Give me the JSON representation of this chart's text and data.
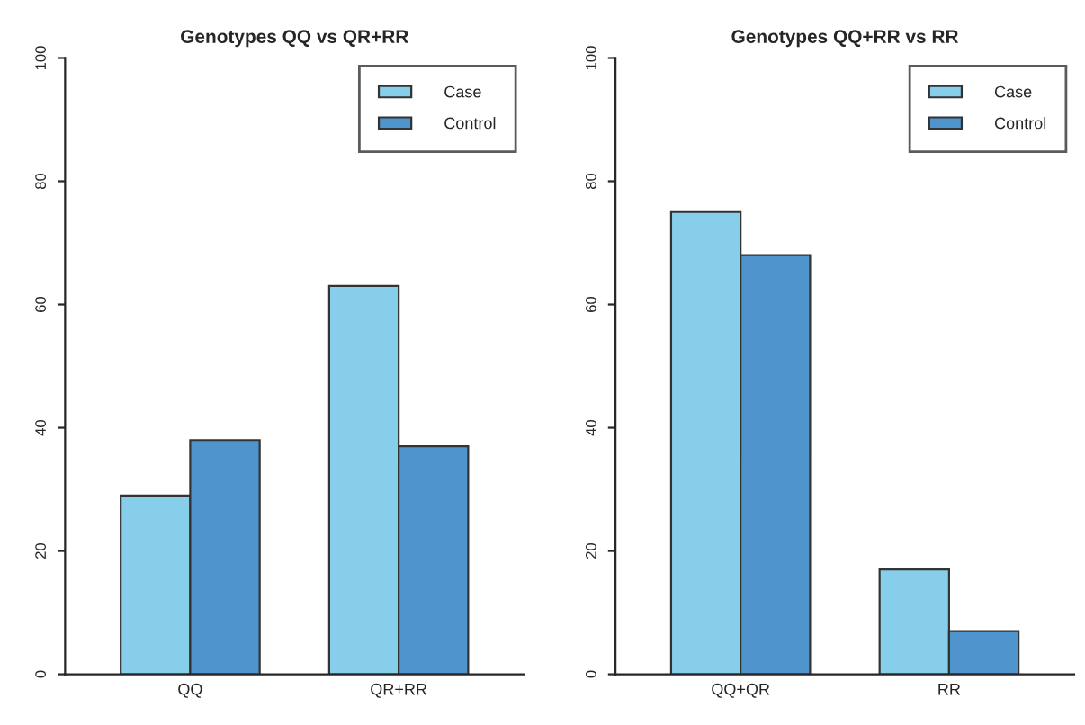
{
  "chart_data": [
    {
      "type": "bar",
      "title": "Genotypes QQ vs QR+RR",
      "categories": [
        "QQ",
        "QR+RR"
      ],
      "series": [
        {
          "name": "Case",
          "color": "#87ceeb",
          "values": [
            29,
            63
          ]
        },
        {
          "name": "Control",
          "color": "#4f94cd",
          "values": [
            38,
            37
          ]
        }
      ],
      "ylim": [
        0,
        100
      ],
      "yticks": [
        0,
        20,
        40,
        60,
        80,
        100
      ],
      "legend": "top right",
      "grid": false
    },
    {
      "type": "bar",
      "title": "Genotypes QQ+RR vs RR",
      "categories": [
        "QQ+QR",
        "RR"
      ],
      "series": [
        {
          "name": "Case",
          "color": "#87ceeb",
          "values": [
            75,
            17
          ]
        },
        {
          "name": "Control",
          "color": "#4f94cd",
          "values": [
            68,
            7
          ]
        }
      ],
      "ylim": [
        0,
        100
      ],
      "yticks": [
        0,
        20,
        40,
        60,
        80,
        100
      ],
      "legend": "top right",
      "grid": false
    }
  ]
}
